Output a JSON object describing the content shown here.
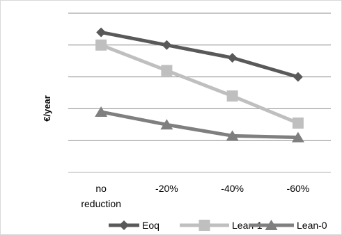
{
  "chart_data": {
    "type": "line",
    "categories": [
      "no reduction",
      "-20%",
      "-40%",
      "-60%"
    ],
    "category_lines": [
      [
        "no",
        "reduction"
      ],
      [
        "-20%"
      ],
      [
        "-40%"
      ],
      [
        "-60%"
      ]
    ],
    "ylabel": "€/year",
    "xlabel": "",
    "title": "",
    "ylim": [
      0,
      5
    ],
    "grid": true,
    "legend_position": "bottom",
    "series": [
      {
        "name": "Eoq",
        "values": [
          4.4,
          4.0,
          3.6,
          3.0
        ],
        "color": "#595959",
        "marker": "diamond"
      },
      {
        "name": "Lean-1",
        "values": [
          4.0,
          3.2,
          2.4,
          1.55
        ],
        "color": "#bfbfbf",
        "marker": "square"
      },
      {
        "name": "Lean-0",
        "values": [
          1.9,
          1.5,
          1.15,
          1.1
        ],
        "color": "#7f7f7f",
        "marker": "triangle"
      }
    ]
  }
}
